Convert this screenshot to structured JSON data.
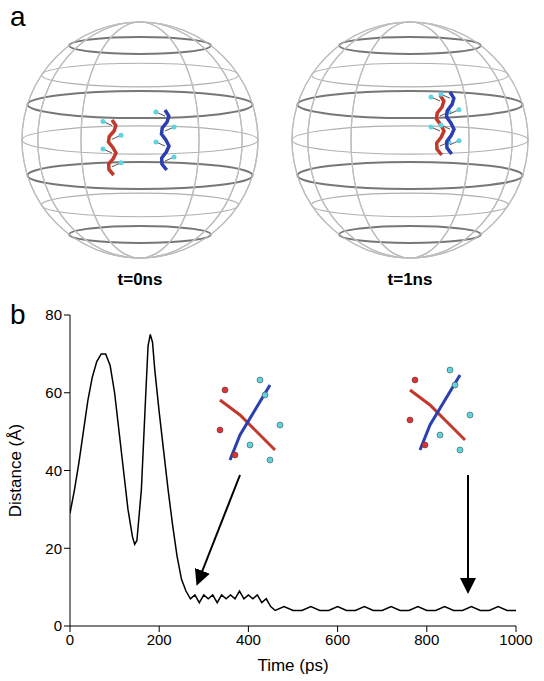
{
  "panel_a": {
    "letter": "a",
    "labels": [
      "t=0ns",
      "t=1ns"
    ]
  },
  "panel_b": {
    "letter": "b"
  },
  "chart_data": {
    "type": "line",
    "x_label": "Time (ps)",
    "y_label": "Distance (Å)",
    "xlim": [
      0,
      1000
    ],
    "xticks": [
      0,
      200,
      400,
      600,
      800,
      1000
    ],
    "ylim": [
      0,
      80
    ],
    "yticks": [
      0,
      20,
      40,
      60,
      80
    ],
    "grid": false,
    "series": [
      {
        "name": "distance",
        "color": "#000000",
        "x": [
          0,
          10,
          20,
          30,
          40,
          50,
          60,
          70,
          80,
          90,
          100,
          110,
          120,
          130,
          140,
          145,
          150,
          160,
          170,
          175,
          180,
          185,
          190,
          200,
          210,
          220,
          230,
          240,
          250,
          260,
          270,
          280,
          290,
          300,
          310,
          320,
          330,
          340,
          350,
          360,
          370,
          380,
          390,
          400,
          410,
          420,
          430,
          440,
          450,
          460,
          480,
          500,
          520,
          540,
          560,
          580,
          600,
          620,
          640,
          660,
          680,
          700,
          720,
          740,
          760,
          780,
          800,
          820,
          840,
          860,
          880,
          900,
          920,
          940,
          960,
          980,
          1000
        ],
        "values": [
          29,
          35,
          42,
          50,
          58,
          64,
          68,
          70,
          70,
          67,
          60,
          50,
          40,
          30,
          23,
          21,
          22,
          35,
          60,
          72,
          75,
          73,
          66,
          55,
          45,
          35,
          26,
          18,
          12,
          9,
          7,
          8,
          6,
          8,
          7,
          8,
          6,
          8,
          7,
          8,
          7,
          9,
          7,
          8,
          7,
          8,
          6,
          7,
          5,
          4,
          5,
          4,
          4,
          5,
          4,
          4,
          5,
          4,
          4,
          5,
          4,
          4,
          5,
          4,
          4,
          5,
          4,
          4,
          5,
          4,
          4,
          5,
          4,
          4,
          5,
          4,
          4
        ]
      }
    ]
  }
}
